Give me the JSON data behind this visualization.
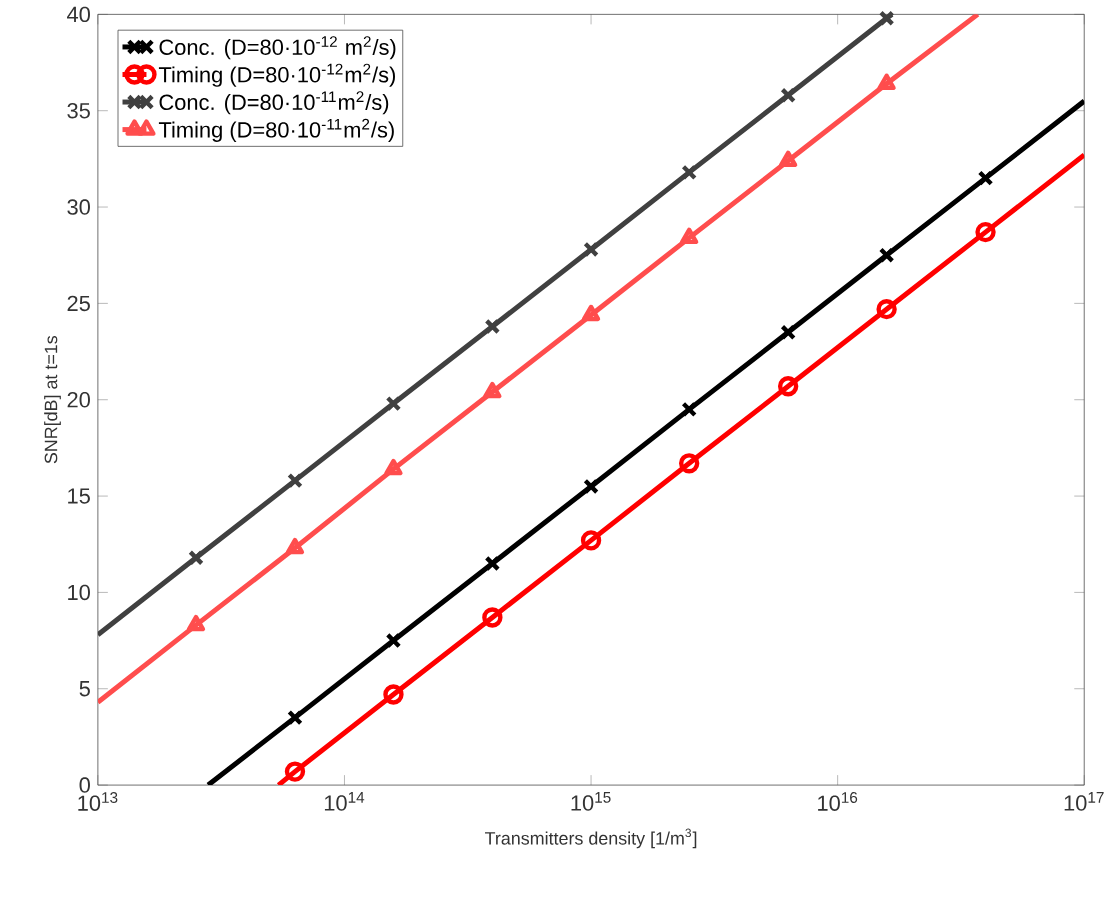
{
  "chart_data": {
    "type": "line",
    "xlabel": "Transmitters density [1/m$^{3}$]",
    "ylabel": "SNR[dB] at t=1s",
    "log": "x",
    "xlim": [
      10000000000000.0,
      1e+17
    ],
    "ylim": [
      0,
      40
    ],
    "xticks": [
      {
        "value": 10000000000000.0,
        "label": "10$^{13}$"
      },
      {
        "value": 100000000000000.0,
        "label": "10$^{14}$"
      },
      {
        "value": 1000000000000000.0,
        "label": "10$^{15}$"
      },
      {
        "value": 1e+16,
        "label": "10$^{16}$"
      },
      {
        "value": 1e+17,
        "label": "10$^{17}$"
      }
    ],
    "yticks": [
      0,
      5,
      10,
      15,
      20,
      25,
      30,
      35,
      40
    ],
    "grid": false,
    "legend": "top left",
    "line_style": "solid",
    "series": [
      {
        "name": "Conc. (D=80·10$^{-12}$ m$^{2}$/s)",
        "color": "#000000",
        "marker": "cross",
        "x": [
          28000000000000.0,
          63000000000000.0,
          158000000000000.0,
          398000000000000.0,
          1000000000000000.0,
          2500000000000000.0,
          6300000000000000.0,
          1.58e+16,
          3.98e+16,
          1e+17
        ],
        "values": [
          0,
          3.5,
          7.5,
          11.5,
          15.5,
          19.5,
          23.5,
          27.5,
          31.5,
          35.5
        ]
      },
      {
        "name": "Timing (D=80·10$^{-12}$m$^{2}$/s)",
        "color": "#ff0000",
        "marker": "circle",
        "x": [
          54000000000000.0,
          63000000000000.0,
          158000000000000.0,
          398000000000000.0,
          1000000000000000.0,
          2500000000000000.0,
          6300000000000000.0,
          1.58e+16,
          3.98e+16,
          1e+17
        ],
        "values": [
          0,
          0.7,
          4.7,
          8.7,
          12.7,
          16.7,
          20.7,
          24.7,
          28.7,
          32.7
        ]
      },
      {
        "name": "Conc. (D=80·10$^{-11}$m$^{2}$/s)",
        "color": "#404040",
        "marker": "cross",
        "x": [
          10000000000000.0,
          25000000000000.0,
          63000000000000.0,
          158000000000000.0,
          398000000000000.0,
          1000000000000000.0,
          2500000000000000.0,
          6300000000000000.0,
          1.58e+16,
          1.66e+16
        ],
        "values": [
          7.8,
          11.8,
          15.8,
          19.8,
          23.8,
          27.8,
          31.8,
          35.8,
          39.8,
          40
        ]
      },
      {
        "name": "Timing (D=80·10$^{-11}$m$^{2}$/s)",
        "color": "#ff4d4d",
        "marker": "triangle",
        "x": [
          10000000000000.0,
          25000000000000.0,
          63000000000000.0,
          158000000000000.0,
          398000000000000.0,
          1000000000000000.0,
          2500000000000000.0,
          6300000000000000.0,
          1.58e+16,
          3.7e+16
        ],
        "values": [
          4.3,
          8.3,
          12.3,
          16.4,
          20.4,
          24.4,
          28.4,
          32.4,
          36.4,
          40
        ]
      }
    ]
  }
}
